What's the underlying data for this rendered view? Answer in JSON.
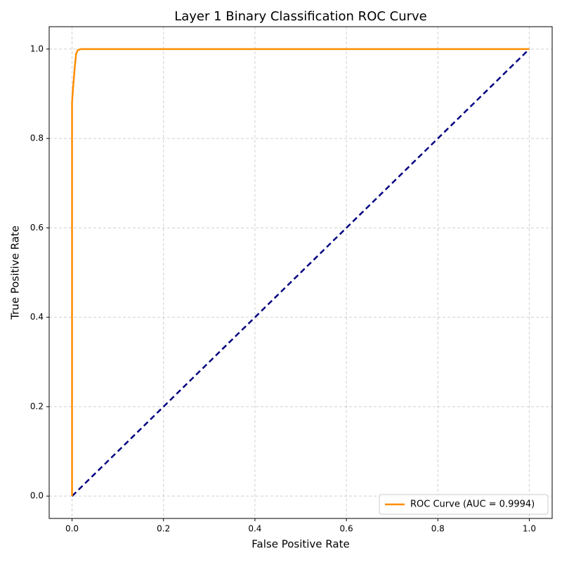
{
  "chart_data": {
    "type": "line",
    "title": "Layer 1 Binary Classification ROC Curve",
    "xlabel": "False Positive Rate",
    "ylabel": "True Positive Rate",
    "xlim": [
      -0.05,
      1.05
    ],
    "ylim": [
      -0.05,
      1.05
    ],
    "xticks": [
      {
        "value": 0,
        "label": "0.0"
      },
      0.2,
      0.4,
      0.6,
      0.8,
      {
        "value": 1,
        "label": "1.0"
      }
    ],
    "yticks": [
      {
        "value": 0,
        "label": "0.0"
      },
      0.2,
      0.4,
      0.6,
      0.8,
      {
        "value": 1,
        "label": "1.0"
      }
    ],
    "grid": true,
    "legend": "lower right",
    "series": [
      {
        "name": "ROC Curve (AUC = 0.9994)",
        "color": "#ff8c00",
        "style": "solid",
        "x": [
          0,
          0,
          0.002,
          0.006,
          0.009,
          0.013,
          0.02,
          1
        ],
        "values": [
          0,
          0.88,
          0.91,
          0.96,
          0.99,
          0.998,
          1,
          1
        ]
      },
      {
        "color": "#000080",
        "style": "dashed",
        "x": [
          0,
          1
        ],
        "values": [
          0,
          1
        ]
      }
    ]
  }
}
